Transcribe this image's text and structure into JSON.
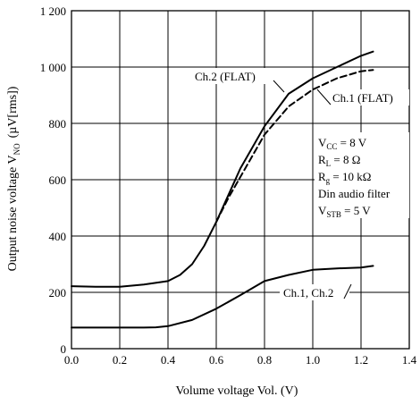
{
  "chart_data": {
    "type": "line",
    "xlabel": "Volume voltage  Vol.  (V)",
    "ylabel": "Output noise voltage  V",
    "ylabel_sub": "NO",
    "ylabel_unit": "(µV[rms])",
    "xlim": [
      0.0,
      1.4
    ],
    "ylim": [
      0,
      1200
    ],
    "x_ticks": [
      0.0,
      0.2,
      0.4,
      0.6,
      0.8,
      1.0,
      1.2,
      1.4
    ],
    "x_tick_labels": [
      "0.0",
      "0.2",
      "0.4",
      "0.6",
      "0.8",
      "1.0",
      "1.2",
      "1.4"
    ],
    "y_ticks": [
      0,
      200,
      400,
      600,
      800,
      1000,
      1200
    ],
    "y_tick_labels": [
      "0",
      "200",
      "400",
      "600",
      "800",
      "1 000",
      "1 200"
    ],
    "grid": true,
    "series": [
      {
        "name": "Ch.2 (FLAT)",
        "style": "solid",
        "color": "#000000",
        "x": [
          0.0,
          0.1,
          0.2,
          0.3,
          0.4,
          0.45,
          0.5,
          0.55,
          0.6,
          0.65,
          0.7,
          0.8,
          0.9,
          1.0,
          1.1,
          1.2,
          1.25
        ],
        "y": [
          222,
          220,
          220,
          228,
          240,
          262,
          300,
          365,
          450,
          545,
          640,
          790,
          905,
          960,
          1000,
          1040,
          1055
        ]
      },
      {
        "name": "Ch.1 (FLAT)",
        "style": "dashed",
        "color": "#000000",
        "x": [
          0.6,
          0.65,
          0.7,
          0.8,
          0.9,
          1.0,
          1.1,
          1.2,
          1.25
        ],
        "y": [
          450,
          535,
          610,
          760,
          860,
          920,
          960,
          985,
          990
        ]
      },
      {
        "name": "Ch.1, Ch.2",
        "style": "solid",
        "color": "#000000",
        "x": [
          0.0,
          0.1,
          0.2,
          0.3,
          0.35,
          0.4,
          0.5,
          0.6,
          0.7,
          0.8,
          0.9,
          1.0,
          1.1,
          1.2,
          1.25
        ],
        "y": [
          75,
          75,
          75,
          75,
          76,
          80,
          102,
          142,
          190,
          240,
          262,
          280,
          285,
          288,
          294
        ]
      }
    ],
    "annotations": [
      "Ch.2 (FLAT)",
      "Ch.1 (FLAT)",
      "Ch.1, Ch.2"
    ],
    "conditions": [
      {
        "main": "V",
        "sub": "CC",
        "rest": " = 8 V"
      },
      {
        "main": "R",
        "sub": "L",
        "rest": " = 8 Ω"
      },
      {
        "main": "R",
        "sub": "g",
        "rest": " = 10 kΩ"
      },
      {
        "main": "Din audio filter",
        "sub": "",
        "rest": ""
      },
      {
        "main": "V",
        "sub": "STB",
        "rest": " = 5 V"
      }
    ]
  }
}
